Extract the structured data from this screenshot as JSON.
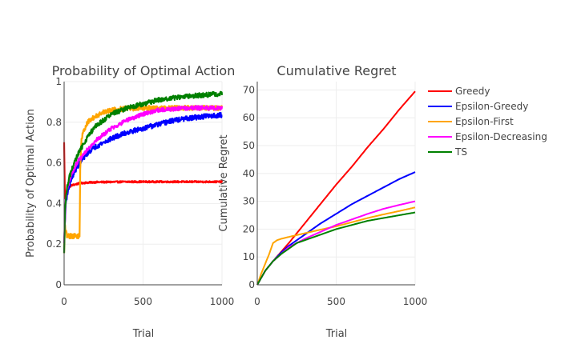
{
  "chart_data": [
    {
      "type": "line",
      "title": "Probability of Optimal Action",
      "xlabel": "Trial",
      "ylabel": "Probability of Optimal Action",
      "xlim": [
        0,
        1000
      ],
      "ylim": [
        0,
        1
      ],
      "xticks": [
        "0",
        "500",
        "1000"
      ],
      "yticks": [
        "0",
        "0.2",
        "0.4",
        "0.6",
        "0.8",
        "1"
      ],
      "grid": true,
      "series": [
        {
          "name": "Greedy",
          "color": "#ff0000",
          "noise": 0.004,
          "x": [
            0,
            5,
            10,
            20,
            30,
            50,
            75,
            100,
            150,
            200,
            300,
            400,
            500,
            600,
            700,
            800,
            900,
            1000
          ],
          "y": [
            0.7,
            0.42,
            0.45,
            0.47,
            0.48,
            0.49,
            0.495,
            0.5,
            0.503,
            0.505,
            0.506,
            0.507,
            0.507,
            0.507,
            0.507,
            0.507,
            0.507,
            0.507
          ]
        },
        {
          "name": "Epsilon-Greedy",
          "color": "#0000ff",
          "noise": 0.012,
          "x": [
            0,
            10,
            20,
            30,
            50,
            75,
            100,
            150,
            200,
            250,
            300,
            400,
            500,
            600,
            700,
            800,
            900,
            1000
          ],
          "y": [
            0.2,
            0.4,
            0.45,
            0.48,
            0.53,
            0.57,
            0.6,
            0.65,
            0.68,
            0.7,
            0.72,
            0.75,
            0.77,
            0.79,
            0.81,
            0.82,
            0.83,
            0.835
          ]
        },
        {
          "name": "Epsilon-First",
          "color": "#ffa500",
          "noise": 0.012,
          "x": [
            0,
            5,
            10,
            20,
            50,
            80,
            99,
            101,
            110,
            130,
            150,
            200,
            250,
            300,
            400,
            500,
            600,
            700,
            800,
            900,
            1000
          ],
          "y": [
            0.15,
            0.3,
            0.26,
            0.24,
            0.24,
            0.24,
            0.24,
            0.55,
            0.72,
            0.77,
            0.8,
            0.83,
            0.85,
            0.86,
            0.868,
            0.87,
            0.87,
            0.87,
            0.87,
            0.87,
            0.87
          ]
        },
        {
          "name": "Epsilon-Decreasing",
          "color": "#ff00ff",
          "noise": 0.01,
          "x": [
            0,
            10,
            20,
            30,
            50,
            75,
            100,
            150,
            200,
            250,
            300,
            400,
            500,
            600,
            700,
            800,
            900,
            1000
          ],
          "y": [
            0.2,
            0.42,
            0.47,
            0.5,
            0.55,
            0.59,
            0.62,
            0.67,
            0.71,
            0.74,
            0.77,
            0.81,
            0.84,
            0.86,
            0.866,
            0.87,
            0.87,
            0.87
          ]
        },
        {
          "name": "TS",
          "color": "#008000",
          "noise": 0.012,
          "x": [
            0,
            5,
            10,
            20,
            30,
            50,
            75,
            100,
            150,
            200,
            250,
            300,
            400,
            500,
            600,
            700,
            800,
            900,
            1000
          ],
          "y": [
            0.15,
            0.35,
            0.42,
            0.48,
            0.52,
            0.57,
            0.62,
            0.66,
            0.73,
            0.78,
            0.81,
            0.84,
            0.87,
            0.89,
            0.91,
            0.92,
            0.93,
            0.935,
            0.94
          ]
        }
      ]
    },
    {
      "type": "line",
      "title": "Cumulative Regret",
      "xlabel": "Trial",
      "ylabel": "Cumulative Regret",
      "xlim": [
        0,
        1000
      ],
      "ylim": [
        0,
        73
      ],
      "xticks": [
        "0",
        "500",
        "1000"
      ],
      "yticks": [
        "0",
        "10",
        "20",
        "30",
        "40",
        "50",
        "60",
        "70"
      ],
      "grid": true,
      "legend": "top-right",
      "series": [
        {
          "name": "Greedy",
          "color": "#ff0000",
          "noise": 0,
          "x": [
            0,
            50,
            100,
            200,
            300,
            400,
            500,
            600,
            700,
            800,
            900,
            1000
          ],
          "y": [
            0,
            5,
            8.5,
            15,
            22,
            29,
            36,
            42.5,
            49.5,
            56,
            63,
            69.5
          ]
        },
        {
          "name": "Epsilon-Greedy",
          "color": "#0000ff",
          "noise": 0,
          "x": [
            0,
            50,
            100,
            150,
            200,
            250,
            300,
            400,
            500,
            600,
            700,
            800,
            900,
            1000
          ],
          "y": [
            0,
            5,
            8.5,
            11.5,
            14,
            16,
            18,
            22,
            25.5,
            29,
            32,
            35,
            38,
            40.5
          ]
        },
        {
          "name": "Epsilon-First",
          "color": "#ffa500",
          "noise": 0,
          "x": [
            0,
            25,
            50,
            75,
            100,
            125,
            150,
            200,
            300,
            400,
            500,
            600,
            700,
            800,
            900,
            1000
          ],
          "y": [
            0,
            4,
            7.5,
            11,
            15,
            16,
            16.5,
            17.2,
            18.5,
            19.8,
            21,
            22.5,
            24,
            25.3,
            26.5,
            27.8
          ]
        },
        {
          "name": "Epsilon-Decreasing",
          "color": "#ff00ff",
          "noise": 0,
          "x": [
            0,
            50,
            100,
            150,
            200,
            250,
            300,
            400,
            500,
            600,
            700,
            800,
            900,
            1000
          ],
          "y": [
            0,
            5,
            8.5,
            11,
            13.5,
            15,
            16.5,
            19,
            21.5,
            23.5,
            25.5,
            27.3,
            28.7,
            30
          ]
        },
        {
          "name": "TS",
          "color": "#008000",
          "noise": 0,
          "x": [
            0,
            50,
            100,
            150,
            200,
            250,
            300,
            400,
            500,
            600,
            700,
            800,
            900,
            1000
          ],
          "y": [
            0,
            5,
            8.5,
            11,
            13,
            15,
            16,
            18,
            20,
            21.5,
            23,
            24,
            25,
            26
          ]
        }
      ]
    }
  ]
}
